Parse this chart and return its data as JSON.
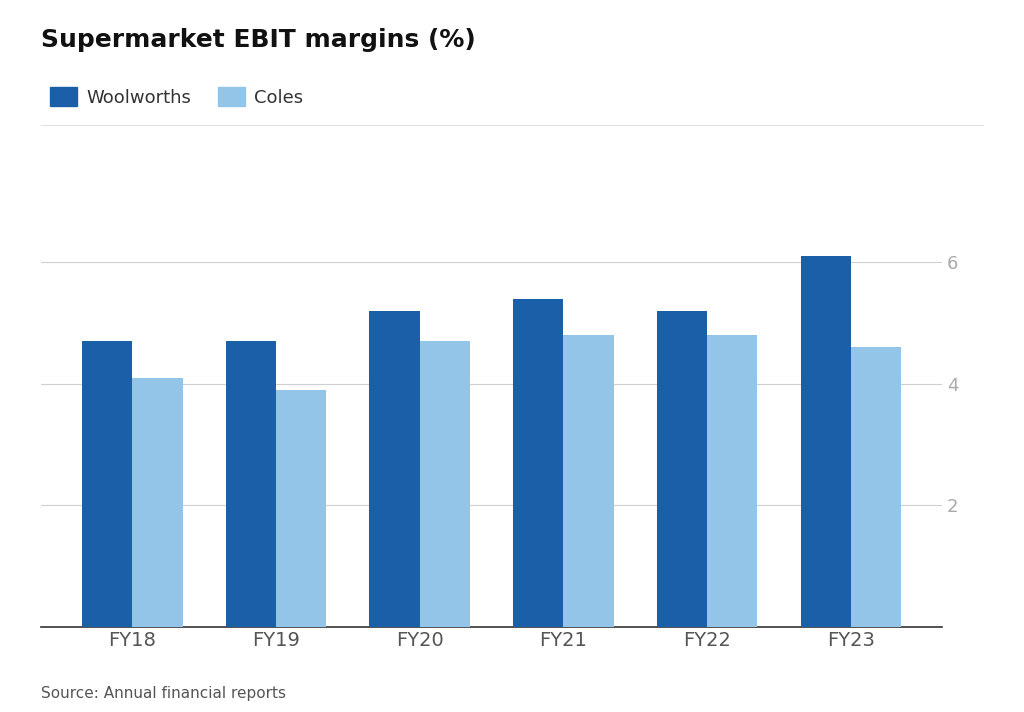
{
  "title": "Supermarket EBIT margins (%)",
  "categories": [
    "FY18",
    "FY19",
    "FY20",
    "FY21",
    "FY22",
    "FY23"
  ],
  "woolworths": [
    4.7,
    4.7,
    5.2,
    5.4,
    5.2,
    6.1
  ],
  "coles": [
    4.1,
    3.9,
    4.7,
    4.8,
    4.8,
    4.6
  ],
  "woolworths_color": "#1a5fa8",
  "coles_color": "#92c5e8",
  "ylim": [
    0,
    6.8
  ],
  "yticks": [
    2,
    4,
    6
  ],
  "source": "Source: Annual financial reports",
  "legend_labels": [
    "Woolworths",
    "Coles"
  ],
  "background_color": "#ffffff",
  "grid_color": "#d0d0d0",
  "bar_width": 0.35
}
